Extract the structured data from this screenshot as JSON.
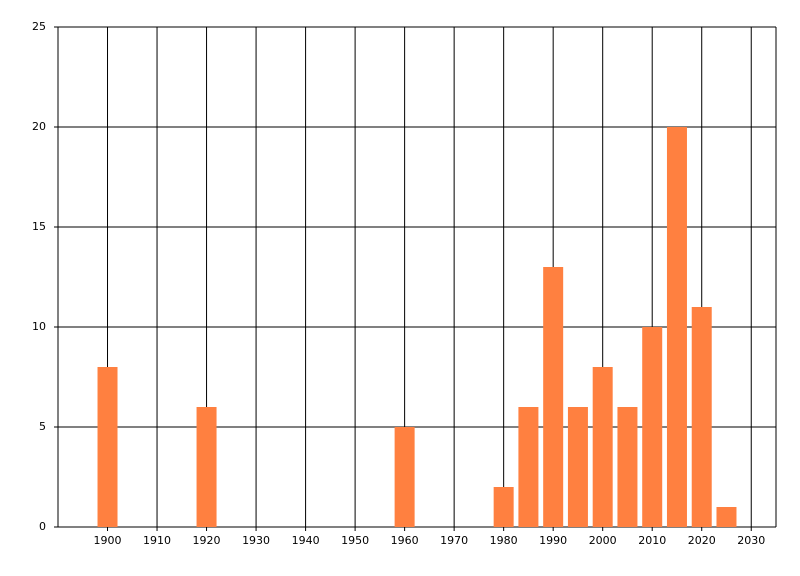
{
  "chart_data": {
    "type": "bar",
    "x": [
      1900,
      1920,
      1960,
      1980,
      1985,
      1990,
      1995,
      2000,
      2005,
      2010,
      2015,
      2020,
      2025
    ],
    "values": [
      8,
      6,
      5,
      2,
      6,
      13,
      6,
      8,
      6,
      10,
      20,
      11,
      1
    ],
    "color": "#ff8040",
    "xlim": [
      1890,
      2035
    ],
    "xticks": [
      1900,
      1910,
      1920,
      1930,
      1940,
      1950,
      1960,
      1970,
      1980,
      1990,
      2000,
      2010,
      2020,
      2030
    ],
    "ylim": [
      0,
      25
    ],
    "yticks": [
      0,
      5,
      10,
      15,
      20,
      25
    ],
    "grid": true
  }
}
